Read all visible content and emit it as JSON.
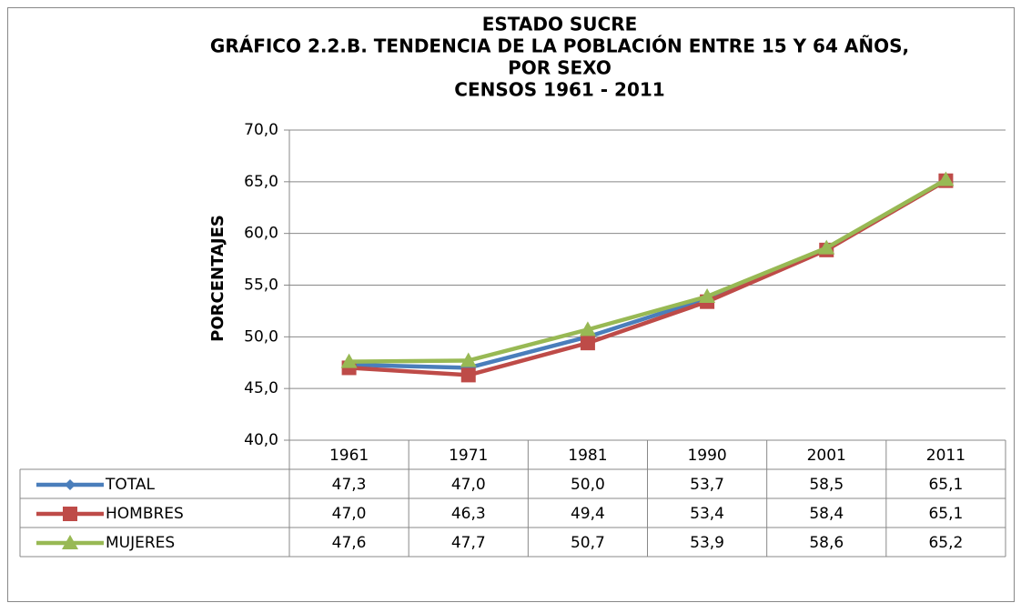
{
  "chart_data": {
    "type": "line",
    "title": [
      "ESTADO SUCRE",
      "GRÁFICO 2.2.B. TENDENCIA DE LA POBLACIÓN ENTRE 15 Y 64 AÑOS,",
      "POR SEXO",
      "CENSOS 1961 - 2011"
    ],
    "y_label": "PORCENTAJES",
    "categories": [
      "1961",
      "1971",
      "1981",
      "1990",
      "2001",
      "2011"
    ],
    "series": [
      {
        "name": "TOTAL",
        "color": "#4a7ebb",
        "marker": "diamond",
        "values": [
          47.3,
          47.0,
          50.0,
          53.7,
          58.5,
          65.1
        ],
        "value_labels": [
          "47,3",
          "47,0",
          "50,0",
          "53,7",
          "58,5",
          "65,1"
        ]
      },
      {
        "name": "HOMBRES",
        "color": "#be4b48",
        "marker": "square",
        "values": [
          47.0,
          46.3,
          49.4,
          53.4,
          58.4,
          65.1
        ],
        "value_labels": [
          "47,0",
          "46,3",
          "49,4",
          "53,4",
          "58,4",
          "65,1"
        ]
      },
      {
        "name": "MUJERES",
        "color": "#98b954",
        "marker": "triangle",
        "values": [
          47.6,
          47.7,
          50.7,
          53.9,
          58.6,
          65.2
        ],
        "value_labels": [
          "47,6",
          "47,7",
          "50,7",
          "53,9",
          "58,6",
          "65,2"
        ]
      }
    ],
    "ylim": [
      40,
      70
    ],
    "yticks": [
      {
        "value": 40,
        "label": "40,0"
      },
      {
        "value": 45,
        "label": "45,0"
      },
      {
        "value": 50,
        "label": "50,0"
      },
      {
        "value": 55,
        "label": "55,0"
      },
      {
        "value": 60,
        "label": "60,0"
      },
      {
        "value": 65,
        "label": "65,0"
      },
      {
        "value": 70,
        "label": "70,0"
      }
    ],
    "grid": true
  }
}
